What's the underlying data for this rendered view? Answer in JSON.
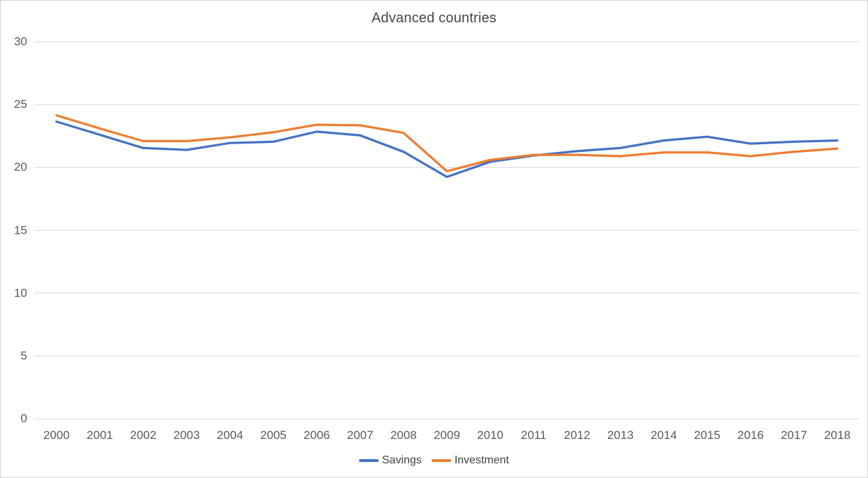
{
  "chart_data": {
    "type": "line",
    "title": "Advanced countries",
    "x": [
      2000,
      2001,
      2002,
      2003,
      2004,
      2005,
      2006,
      2007,
      2008,
      2009,
      2010,
      2011,
      2012,
      2013,
      2014,
      2015,
      2016,
      2017,
      2018
    ],
    "series": [
      {
        "name": "Savings",
        "color": "#4472C4",
        "values": [
          23.65,
          22.6,
          21.55,
          21.4,
          21.95,
          22.05,
          22.85,
          22.55,
          21.25,
          19.25,
          20.45,
          20.95,
          21.3,
          21.55,
          22.15,
          22.45,
          21.9,
          22.05,
          22.15
        ]
      },
      {
        "name": "Investment",
        "color": "#ED7D31",
        "values": [
          24.15,
          23.1,
          22.1,
          22.1,
          22.4,
          22.8,
          23.4,
          23.35,
          22.75,
          19.7,
          20.6,
          21.0,
          21.0,
          20.9,
          21.2,
          21.2,
          20.9,
          21.25,
          21.5
        ]
      }
    ],
    "ylim": [
      0,
      30
    ],
    "yticks": [
      0,
      5,
      10,
      15,
      20,
      25,
      30
    ],
    "grid": "horizontal",
    "gridline_color": "#D9D9D9",
    "axis_label_color": "#595959",
    "title_color": "#454545",
    "legend_position": "bottom",
    "legend": [
      "Savings",
      "Investment"
    ]
  }
}
